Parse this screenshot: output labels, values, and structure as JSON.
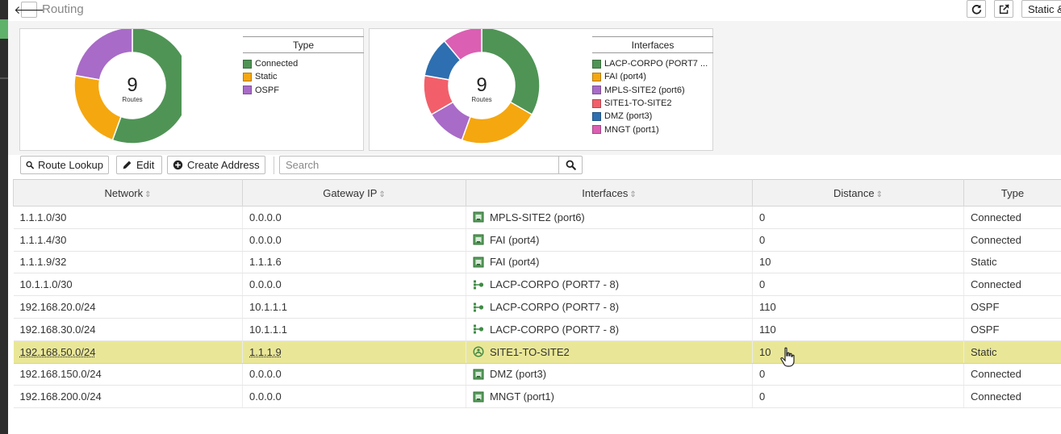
{
  "header": {
    "title": "Routing",
    "static_button_label": "Static &",
    "icons": {
      "back": "arrow-left-icon",
      "refresh": "refresh-icon",
      "external": "external-link-icon"
    }
  },
  "type_chart": {
    "center_value": "9",
    "center_label": "Routes",
    "legend_title": "Type",
    "chart_data": {
      "type": "pie",
      "title": "",
      "categories": [
        "Connected",
        "Static",
        "OSPF"
      ],
      "values": [
        5,
        2,
        2
      ],
      "colors": [
        "#4f9455",
        "#f5a70f",
        "#a86bc8"
      ],
      "legend_placement": "right"
    }
  },
  "interfaces_chart": {
    "center_value": "9",
    "center_label": "Routes",
    "legend_title": "Interfaces",
    "chart_data": {
      "type": "pie",
      "title": "",
      "categories": [
        "LACP-CORPO (PORT7 ...",
        "FAI (port4)",
        "MPLS-SITE2 (port6)",
        "SITE1-TO-SITE2",
        "DMZ (port3)",
        "MNGT (port1)"
      ],
      "values": [
        3,
        2,
        1,
        1,
        1,
        1
      ],
      "colors": [
        "#4f9455",
        "#f5a70f",
        "#a86bc8",
        "#f25f6a",
        "#2d6fb0",
        "#db5fb2"
      ],
      "legend_placement": "right"
    }
  },
  "toolbar": {
    "route_lookup_label": "Route Lookup",
    "edit_label": "Edit",
    "create_address_label": "Create Address",
    "search_placeholder": "Search"
  },
  "table": {
    "columns": [
      "Network",
      "Gateway IP",
      "Interfaces",
      "Distance",
      "Type"
    ],
    "sort_indicator": "⇕",
    "selected_row": 6,
    "rows": [
      {
        "network": "1.1.1.0/30",
        "gateway": "0.0.0.0",
        "interface": "MPLS-SITE2 (port6)",
        "interface_icon": "port-icon",
        "distance": "0",
        "type": "Connected"
      },
      {
        "network": "1.1.1.4/30",
        "gateway": "0.0.0.0",
        "interface": "FAI (port4)",
        "interface_icon": "port-icon",
        "distance": "0",
        "type": "Connected"
      },
      {
        "network": "1.1.1.9/32",
        "gateway": "1.1.1.6",
        "interface": "FAI (port4)",
        "interface_icon": "port-icon",
        "distance": "10",
        "type": "Static"
      },
      {
        "network": "10.1.1.0/30",
        "gateway": "0.0.0.0",
        "interface": "LACP-CORPO (PORT7 - 8)",
        "interface_icon": "aggregate-icon",
        "distance": "0",
        "type": "Connected"
      },
      {
        "network": "192.168.20.0/24",
        "gateway": "10.1.1.1",
        "interface": "LACP-CORPO (PORT7 - 8)",
        "interface_icon": "aggregate-icon",
        "distance": "110",
        "type": "OSPF"
      },
      {
        "network": "192.168.30.0/24",
        "gateway": "10.1.1.1",
        "interface": "LACP-CORPO (PORT7 - 8)",
        "interface_icon": "aggregate-icon",
        "distance": "110",
        "type": "OSPF"
      },
      {
        "network": "192.168.50.0/24",
        "gateway": "1.1.1.9",
        "interface": "SITE1-TO-SITE2",
        "interface_icon": "tunnel-icon",
        "distance": "10",
        "type": "Static"
      },
      {
        "network": "192.168.150.0/24",
        "gateway": "0.0.0.0",
        "interface": "DMZ (port3)",
        "interface_icon": "port-icon",
        "distance": "0",
        "type": "Connected"
      },
      {
        "network": "192.168.200.0/24",
        "gateway": "0.0.0.0",
        "interface": "MNGT (port1)",
        "interface_icon": "port-icon",
        "distance": "0",
        "type": "Connected"
      }
    ]
  }
}
